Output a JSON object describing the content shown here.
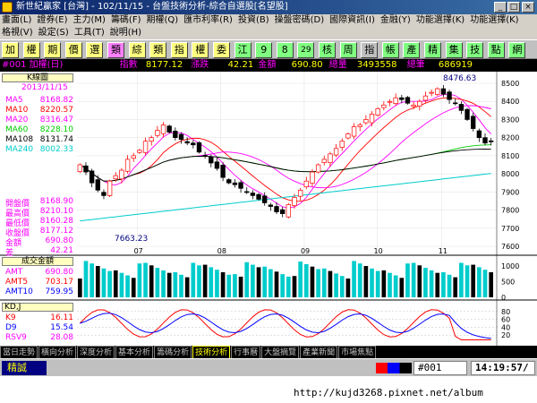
{
  "window": {
    "title": "新世紀贏家 [台灣] - 102/11/15 - 台盤技術分析-綜合自選股[名望股]"
  },
  "menu": {
    "row1": [
      "畫面(L)",
      "證券(E)",
      "主力(M)",
      "籌碼(F)",
      "期權(Q)",
      "匯市利率(R)",
      "投資(B)",
      "操盤密碼(D)",
      "國際資訊(I)",
      "金融(Y)",
      "功能選擇(K)",
      "功能選擇(K)"
    ],
    "row2": [
      "格視(V)",
      "設定(S)",
      "工具(T)",
      "說明(H)"
    ]
  },
  "toolbar": {
    "buttons": [
      "加",
      "權",
      "期",
      "價",
      "選",
      "類",
      "綜",
      "類",
      "指",
      "權",
      "委",
      "江",
      "9",
      "8",
      "29",
      "核",
      "周",
      "指",
      "帳",
      "產",
      "精",
      "集",
      "技",
      "點",
      "網"
    ]
  },
  "infobar": {
    "code": "#001 加權(日)",
    "index_label": "指數",
    "index_value": "8177.12",
    "change_label": "漲跌",
    "change_value": "42.21",
    "amount_label": "金額",
    "amount_value": "690.80",
    "volume_label": "總量",
    "volume_value": "3493558",
    "ticks_label": "總筆",
    "ticks_value": "686919"
  },
  "kpanel": {
    "title": "K線圖",
    "date": "2013/11/15",
    "ma": [
      {
        "label": "MA5",
        "value": "8168.82",
        "color": "#ff00ff"
      },
      {
        "label": "MA10",
        "value": "8220.57",
        "color": "#ff0000"
      },
      {
        "label": "MA20",
        "value": "8316.47",
        "color": "#ff00ff"
      },
      {
        "label": "MA60",
        "value": "8228.10",
        "color": "#00cc00"
      },
      {
        "label": "MA108",
        "value": "8131.74",
        "color": "#000000"
      },
      {
        "label": "MA240",
        "value": "8002.33",
        "color": "#00cccc"
      }
    ],
    "prices": [
      {
        "label": "開盤價",
        "value": "8168.90"
      },
      {
        "label": "最高價",
        "value": "8210.10"
      },
      {
        "label": "最低價",
        "value": "8160.28"
      },
      {
        "label": "收盤價",
        "value": "8177.12"
      },
      {
        "label": "金額",
        "value": "690.80"
      },
      {
        "label": "差",
        "value": "42.21"
      }
    ],
    "high_annot": "8476.63",
    "low_annot": "7663.23",
    "yticks": [
      "8500",
      "8400",
      "8300",
      "8200",
      "8100",
      "8000",
      "7900",
      "7800",
      "7700",
      "7600"
    ],
    "xticks": [
      "07",
      "08",
      "09",
      "10",
      "11"
    ]
  },
  "volpanel": {
    "title": "成交金額",
    "items": [
      {
        "label": "AMT",
        "value": "690.80"
      },
      {
        "label": "AMT5",
        "value": "703.17"
      },
      {
        "label": "AMT10",
        "value": "759.95"
      }
    ],
    "yticks": [
      "1000",
      "500",
      "0"
    ]
  },
  "kdpanel": {
    "title": "KD,J",
    "items": [
      {
        "label": "K9",
        "value": "16.11",
        "color": "#ff0000"
      },
      {
        "label": "D9",
        "value": "15.54",
        "color": "#0000ff"
      },
      {
        "label": "RSV9",
        "value": "28.08",
        "color": "#ff00ff"
      }
    ],
    "yticks": [
      "80",
      "60",
      "40",
      "20"
    ]
  },
  "tabs": [
    "當日走勢",
    "橫向分析",
    "深度分析",
    "基本分析",
    "籌碼分析",
    "技術分析",
    "行事曆",
    "大盤摘覽",
    "產業新聞",
    "市場焦點"
  ],
  "active_tab": "技術分析",
  "status": {
    "left": "精誠",
    "symbol": "#001",
    "time": "14:19:57/"
  },
  "footer": {
    "url": "http://kujd3268.pixnet.net/album"
  },
  "chart_data": {
    "type": "candlestick",
    "series_close": [
      8050,
      8010,
      7950,
      7910,
      7880,
      7960,
      7990,
      8020,
      8080,
      8100,
      8130,
      8180,
      8200,
      8240,
      8270,
      8230,
      8200,
      8190,
      8170,
      8160,
      8120,
      8100,
      8060,
      8030,
      7980,
      7950,
      7940,
      7920,
      7900,
      7880,
      7860,
      7840,
      7820,
      7790,
      7780,
      7830,
      7870,
      7910,
      7960,
      8010,
      8050,
      8080,
      8110,
      8140,
      8180,
      8220,
      8260,
      8270,
      8300,
      8330,
      8360,
      8380,
      8400,
      8420,
      8410,
      8390,
      8380,
      8400,
      8430,
      8450,
      8470,
      8440,
      8410,
      8390,
      8350,
      8300,
      8250,
      8200,
      8170,
      8177
    ]
  }
}
